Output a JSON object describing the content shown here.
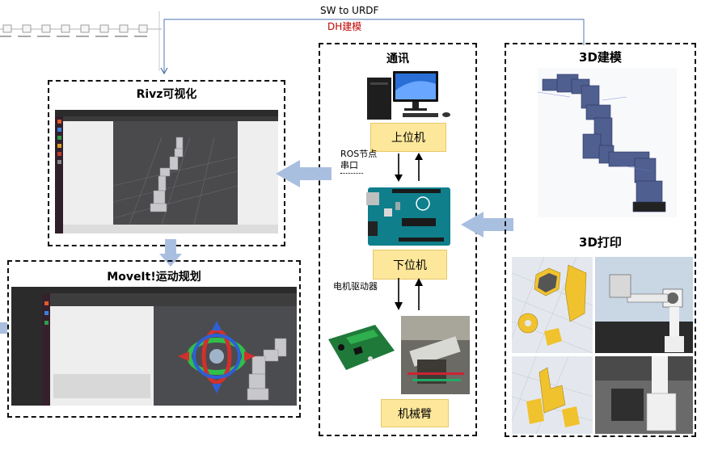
{
  "edges": {
    "sw_to_urdf": "SW to URDF",
    "dh_modeling": "DH建模"
  },
  "rviz": {
    "title": "Rivz可视化"
  },
  "moveit": {
    "title": "MoveIt!运动规划"
  },
  "comm": {
    "title": "通讯",
    "upper": "上位机",
    "ros_node": "ROS节点",
    "serial": "串口",
    "lower": "下位机",
    "motor_driver": "电机驱动器",
    "arm": "机械臂"
  },
  "modeling": {
    "title_3d": "3D建模",
    "title_print": "3D打印"
  },
  "colors": {
    "box_fill": "#fde79b",
    "arrow_blue": "#a9bfe0",
    "edge_text_red": "#c00000"
  }
}
